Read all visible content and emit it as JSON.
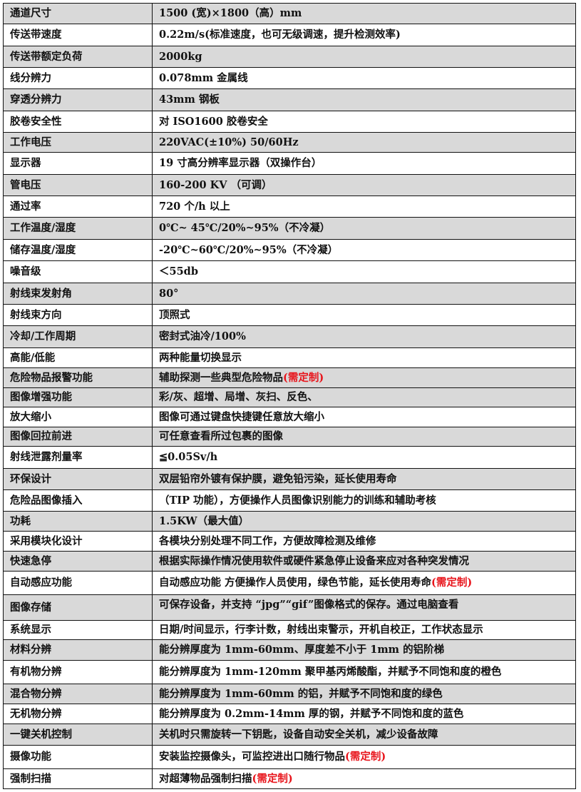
{
  "colors": {
    "shaded_row": "#d9d9d9",
    "note": "#e8141b",
    "border": "#111111"
  },
  "rows": [
    {
      "label": "通道尺寸",
      "value": "1500 (宽)×1800（高）mm",
      "shaded": true
    },
    {
      "label": "传送带速度",
      "value": "0.22m/s(标准速度，也可无级调速，提升检测效率)",
      "shaded": false
    },
    {
      "label": "传送带额定负荷",
      "value": "2000kg",
      "shaded": true
    },
    {
      "label": "线分辨力",
      "value": "0.078mm 金属线",
      "shaded": false
    },
    {
      "label": "穿透分辨力",
      "value": "43mm 钢板",
      "shaded": true
    },
    {
      "label": "胶卷安全性",
      "value": "对 ISO1600 胶卷安全",
      "shaded": false
    },
    {
      "label": "工作电压",
      "value": "220VAC(±10%) 50/60Hz",
      "shaded": true
    },
    {
      "label": "显示器",
      "value": "19 寸高分辨率显示器（双操作台）",
      "shaded": false
    },
    {
      "label": "管电压",
      "value": "160-200 KV （可调）",
      "shaded": true
    },
    {
      "label": "通过率",
      "value": "720 个/h 以上",
      "shaded": false
    },
    {
      "label": "工作温度/湿度",
      "value": "0℃~ 45℃/20%~95%（不冷凝）",
      "shaded": true
    },
    {
      "label": "储存温度/湿度",
      "value": "-20℃~60℃/20%~95%（不冷凝）",
      "shaded": false
    },
    {
      "label": "噪音级",
      "value": "＜55db",
      "shaded": false
    },
    {
      "label": "射线束发射角",
      "value": "80°",
      "shaded": true
    },
    {
      "label": "射线束方向",
      "value": "顶照式",
      "shaded": false
    },
    {
      "label": "冷却/工作周期",
      "value": "密封式油冷/100%",
      "shaded": true
    },
    {
      "label": "高能/低能",
      "value": "两种能量切换显示",
      "shaded": false
    },
    {
      "label": "危险物品报警功能",
      "value": "辅助探测一些典型危险物品",
      "note": "(需定制)",
      "shaded": true
    },
    {
      "label": "图像增强功能",
      "value": "彩/灰、超增、局增、灰扫、反色、",
      "shaded": true
    },
    {
      "label": "放大缩小",
      "value": "图像可通过键盘快捷键任意放大缩小",
      "shaded": false
    },
    {
      "label": "图像回拉前进",
      "value": "可任意查看所过包裹的图像",
      "shaded": true
    },
    {
      "label": "射线泄露剂量率",
      "value": "≦0.05Sv/h",
      "shaded": false
    },
    {
      "label": "环保设计",
      "value": "双层铅帘外镀有保护膜，避免铅污染，延长使用寿命",
      "shaded": true
    },
    {
      "label": "危险品图像插入",
      "value": "（TIP 功能），方便操作人员图像识别能力的训练和辅助考核",
      "shaded": false
    },
    {
      "label": "功耗",
      "value": "1.5KW（最大值）",
      "shaded": true
    },
    {
      "label": "采用模块化设计",
      "value": "各模块分别处理不同工作，方便故障检测及维修",
      "shaded": false
    },
    {
      "label": "快速急停",
      "value": "根据实际操作情况使用软件或硬件紧急停止设备来应对各种突发情况",
      "shaded": true
    },
    {
      "label": "自动感应功能",
      "value": "自动感应功能 方便操作人员使用，绿色节能，延长使用寿命",
      "note": "(需定制)",
      "shaded": false
    },
    {
      "label": "图像存储",
      "value": "可保存设备，并支持 “jpg”“gif”图像格式的保存。通过电脑查看",
      "shaded": true
    },
    {
      "label": "系统显示",
      "value": "日期/时间显示，行李计数，射线出束警示，开机自校正，工作状态显示",
      "shaded": false
    },
    {
      "label": "材料分辨",
      "value": "能分辨厚度为 1mm-60mm、厚度差不小于 1mm 的铝阶梯",
      "shaded": true
    },
    {
      "label": "有机物分辨",
      "value": "能分辨厚度为 1mm-120mm 聚甲基丙烯酸酯，并赋予不同饱和度的橙色",
      "shaded": false
    },
    {
      "label": "混合物分辨",
      "value": "能分辨厚度为 1mm-60mm 的铝，并赋予不同饱和度的绿色",
      "shaded": true
    },
    {
      "label": "无机物分辨",
      "value": "能分辨厚度为 0.2mm-14mm 厚的钢，并赋予不同饱和度的蓝色",
      "shaded": false
    },
    {
      "label": "一键关机控制",
      "value": "关机时只需旋转一下钥匙，设备自动安全关机，减少设备故障",
      "shaded": true
    },
    {
      "label": "摄像功能",
      "value": "安装监控摄像头，可监控进出口随行物品",
      "note": "(需定制)",
      "shaded": false
    },
    {
      "label": "强制扫描",
      "value": "对超薄物品强制扫描",
      "note": "(需定制)",
      "shaded": false
    }
  ]
}
